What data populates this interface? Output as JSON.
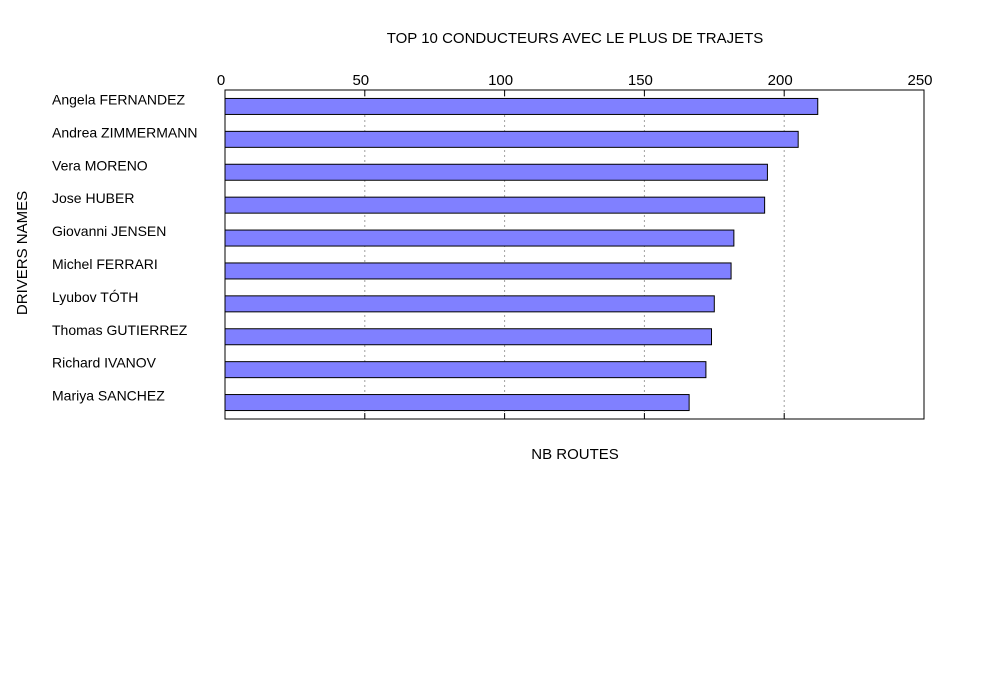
{
  "chart_data": {
    "type": "bar",
    "orientation": "horizontal",
    "title": "TOP 10 CONDUCTEURS AVEC LE PLUS DE TRAJETS",
    "xlabel": "NB ROUTES",
    "ylabel": "DRIVERS NAMES",
    "xlim": [
      0,
      250
    ],
    "xticks": [
      "0",
      "50",
      "100",
      "150",
      "200",
      "250"
    ],
    "grid": true,
    "x_axis_position": "top",
    "categories": [
      "Angela FERNANDEZ",
      "Andrea ZIMMERMANN",
      "Vera MORENO",
      "Jose HUBER",
      "Giovanni JENSEN",
      "Michel FERRARI",
      "Lyubov TÓTH",
      "Thomas GUTIERREZ",
      "Richard IVANOV",
      "Mariya SANCHEZ"
    ],
    "values": [
      212,
      205,
      194,
      193,
      182,
      181,
      175,
      174,
      172,
      166
    ],
    "colors": {
      "bar": "#8080ff",
      "bar_border": "#000000",
      "grid": "#a0a0a0"
    }
  }
}
